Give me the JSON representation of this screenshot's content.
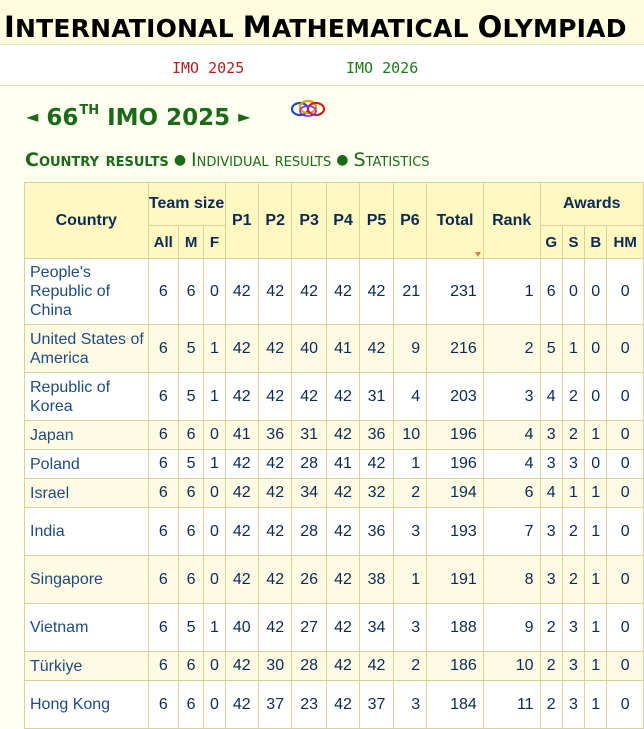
{
  "banner": {
    "title_parts": [
      "I",
      "NTERNATIONAL ",
      "M",
      "ATHEMATICAL ",
      "O",
      "LYMPIAD"
    ]
  },
  "years": {
    "prev": "IMO 2025",
    "next": "IMO 2026",
    "logo_icon": "imo-rings-icon"
  },
  "edition": {
    "left_arrow": "◄",
    "number": "66",
    "suffix": "TH",
    "label": "IMO 2025",
    "right_arrow": "►"
  },
  "nav": {
    "items": [
      "Country results",
      "Individual results",
      "Statistics"
    ],
    "separator": "●"
  },
  "table": {
    "headers": {
      "country": "Country",
      "team_size": "Team size",
      "all": "All",
      "m": "M",
      "f": "F",
      "p1": "P1",
      "p2": "P2",
      "p3": "P3",
      "p4": "P4",
      "p5": "P5",
      "p6": "P6",
      "total": "Total",
      "rank": "Rank",
      "awards": "Awards",
      "g": "G",
      "s": "S",
      "b": "B",
      "hm": "HM"
    },
    "rows": [
      {
        "country": "People's Republic of China",
        "all": "6",
        "m": "6",
        "f": "0",
        "p1": "42",
        "p2": "42",
        "p3": "42",
        "p4": "42",
        "p5": "42",
        "p6": "21",
        "total": "231",
        "rank": "1",
        "g": "6",
        "s": "0",
        "b": "0",
        "hm": "0"
      },
      {
        "country": "United States of America",
        "all": "6",
        "m": "5",
        "f": "1",
        "p1": "42",
        "p2": "42",
        "p3": "40",
        "p4": "41",
        "p5": "42",
        "p6": "9",
        "total": "216",
        "rank": "2",
        "g": "5",
        "s": "1",
        "b": "0",
        "hm": "0"
      },
      {
        "country": "Republic of Korea",
        "all": "6",
        "m": "5",
        "f": "1",
        "p1": "42",
        "p2": "42",
        "p3": "42",
        "p4": "42",
        "p5": "31",
        "p6": "4",
        "total": "203",
        "rank": "3",
        "g": "4",
        "s": "2",
        "b": "0",
        "hm": "0"
      },
      {
        "country": "Japan",
        "all": "6",
        "m": "6",
        "f": "0",
        "p1": "41",
        "p2": "36",
        "p3": "31",
        "p4": "42",
        "p5": "36",
        "p6": "10",
        "total": "196",
        "rank": "4",
        "g": "3",
        "s": "2",
        "b": "1",
        "hm": "0"
      },
      {
        "country": "Poland",
        "all": "6",
        "m": "5",
        "f": "1",
        "p1": "42",
        "p2": "42",
        "p3": "28",
        "p4": "41",
        "p5": "42",
        "p6": "1",
        "total": "196",
        "rank": "4",
        "g": "3",
        "s": "3",
        "b": "0",
        "hm": "0"
      },
      {
        "country": "Israel",
        "all": "6",
        "m": "6",
        "f": "0",
        "p1": "42",
        "p2": "42",
        "p3": "34",
        "p4": "42",
        "p5": "32",
        "p6": "2",
        "total": "194",
        "rank": "6",
        "g": "4",
        "s": "1",
        "b": "1",
        "hm": "0"
      },
      {
        "country": "India",
        "all": "6",
        "m": "6",
        "f": "0",
        "p1": "42",
        "p2": "42",
        "p3": "28",
        "p4": "42",
        "p5": "36",
        "p6": "3",
        "total": "193",
        "rank": "7",
        "g": "3",
        "s": "2",
        "b": "1",
        "hm": "0"
      },
      {
        "country": "Singapore",
        "all": "6",
        "m": "6",
        "f": "0",
        "p1": "42",
        "p2": "42",
        "p3": "26",
        "p4": "42",
        "p5": "38",
        "p6": "1",
        "total": "191",
        "rank": "8",
        "g": "3",
        "s": "2",
        "b": "1",
        "hm": "0"
      },
      {
        "country": "Vietnam",
        "all": "6",
        "m": "5",
        "f": "1",
        "p1": "40",
        "p2": "42",
        "p3": "27",
        "p4": "42",
        "p5": "34",
        "p6": "3",
        "total": "188",
        "rank": "9",
        "g": "2",
        "s": "3",
        "b": "1",
        "hm": "0"
      },
      {
        "country": "Türkiye",
        "all": "6",
        "m": "6",
        "f": "0",
        "p1": "42",
        "p2": "30",
        "p3": "28",
        "p4": "42",
        "p5": "42",
        "p6": "2",
        "total": "186",
        "rank": "10",
        "g": "2",
        "s": "3",
        "b": "1",
        "hm": "0"
      },
      {
        "country": "Hong Kong",
        "all": "6",
        "m": "6",
        "f": "0",
        "p1": "42",
        "p2": "37",
        "p3": "23",
        "p4": "42",
        "p5": "37",
        "p6": "3",
        "total": "184",
        "rank": "11",
        "g": "2",
        "s": "3",
        "b": "1",
        "hm": "0"
      }
    ]
  }
}
